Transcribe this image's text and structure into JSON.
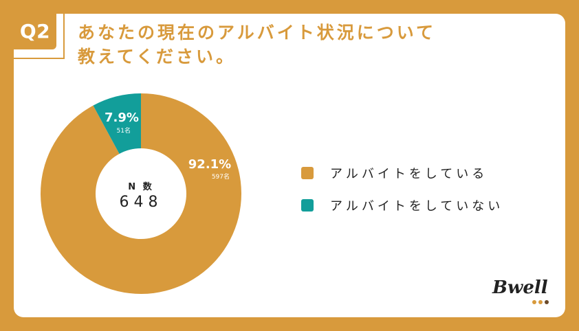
{
  "question": {
    "badge": "Q2",
    "title_line1": "あなたの現在のアルバイト状況について",
    "title_line2": "教えてください。"
  },
  "center": {
    "label": "N 数",
    "value": "648"
  },
  "chart_data": {
    "type": "pie",
    "donut": true,
    "categories": [
      "アルバイトをしている",
      "アルバイトをしていない"
    ],
    "values": [
      92.1,
      7.9
    ],
    "counts": [
      597,
      51
    ],
    "percent_labels": [
      "92.1%",
      "7.9%"
    ],
    "count_labels": [
      "597名",
      "51名"
    ],
    "colors": [
      "#D89A3C",
      "#129E9A"
    ],
    "legend_position": "right"
  },
  "legend": {
    "items": [
      {
        "label": "アルバイトをしている",
        "color": "#D89A3C"
      },
      {
        "label": "アルバイトをしていない",
        "color": "#129E9A"
      }
    ]
  },
  "logo": {
    "text": "Bwell",
    "dot_colors": [
      "#D89A3C",
      "#D89A3C",
      "#6B4A2A"
    ]
  }
}
